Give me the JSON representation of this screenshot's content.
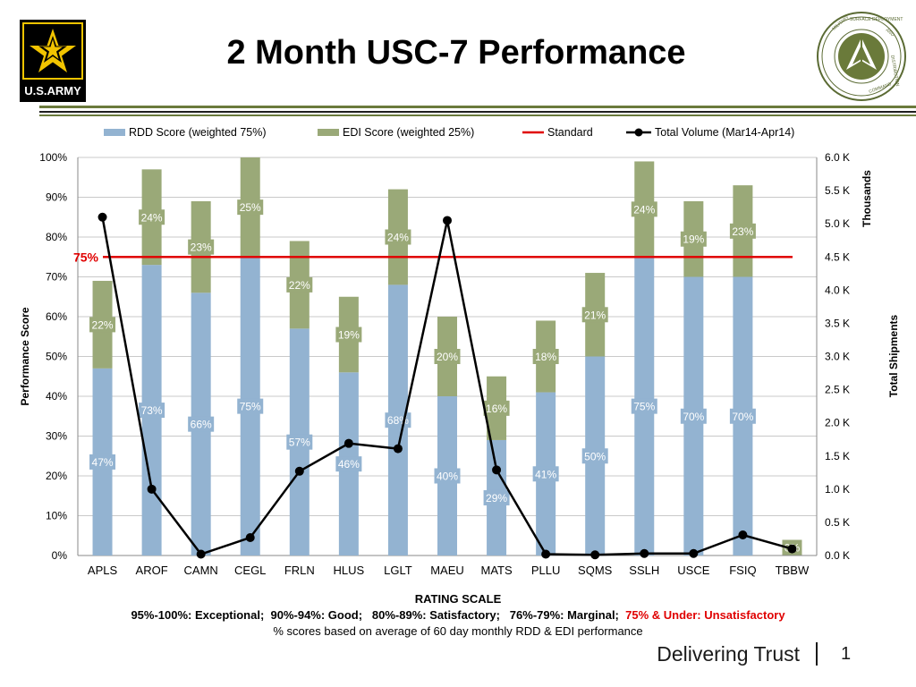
{
  "header": {
    "title": "2 Month USC-7 Performance",
    "logo_left_text": "U.S.ARMY",
    "logo_right_text": "MILITARY SURFACE DEPLOYMENT AND DISTRIBUTION COMMAND"
  },
  "chart_data": {
    "type": "bar",
    "stacked": true,
    "categories": [
      "APLS",
      "AROF",
      "CAMN",
      "CEGL",
      "FRLN",
      "HLUS",
      "LGLT",
      "MAEU",
      "MATS",
      "PLLU",
      "SQMS",
      "SSLH",
      "USCE",
      "FSIQ",
      "TBBW"
    ],
    "series": [
      {
        "name": "RDD Score (weighted 75%)",
        "color": "#93b3d1",
        "axis": "left",
        "values": [
          47,
          73,
          66,
          75,
          57,
          46,
          68,
          40,
          29,
          41,
          50,
          75,
          70,
          70,
          0
        ],
        "labels": [
          "47%",
          "73%",
          "66%",
          "75%",
          "57%",
          "46%",
          "68%",
          "40%",
          "29%",
          "41%",
          "50%",
          "75%",
          "70%",
          "70%",
          ""
        ]
      },
      {
        "name": "EDI Score (weighted 25%)",
        "color": "#9aa978",
        "axis": "left",
        "values": [
          22,
          24,
          23,
          25,
          22,
          19,
          24,
          20,
          16,
          18,
          21,
          24,
          19,
          23,
          0
        ],
        "labels": [
          "22%",
          "24%",
          "23%",
          "25%",
          "22%",
          "19%",
          "24%",
          "20%",
          "16%",
          "18%",
          "21%",
          "24%",
          "19%",
          "23%",
          "0%"
        ]
      },
      {
        "name": "Standard",
        "color": "#e00000",
        "type": "line",
        "axis": "left",
        "value": 75,
        "label": "75%"
      },
      {
        "name": "Total Volume (Mar14-Apr14)",
        "color": "#000000",
        "type": "line",
        "axis": "right",
        "values": [
          5.1,
          1.0,
          0.02,
          0.27,
          1.27,
          1.69,
          1.61,
          5.05,
          1.29,
          0.02,
          0.01,
          0.03,
          0.03,
          0.31,
          0.1
        ]
      }
    ],
    "ylabel": "Performance Score",
    "ylim": [
      0,
      100
    ],
    "yticks": [
      "0%",
      "10%",
      "20%",
      "30%",
      "40%",
      "50%",
      "60%",
      "70%",
      "80%",
      "90%",
      "100%"
    ],
    "y2label": "Total Shipments",
    "y2unit": "Thousands",
    "y2lim": [
      0,
      6
    ],
    "y2ticks": [
      "0.0 K",
      "0.5 K",
      "1.0 K",
      "1.5 K",
      "2.0 K",
      "2.5 K",
      "3.0 K",
      "3.5 K",
      "4.0 K",
      "4.5 K",
      "5.0 K",
      "5.5 K",
      "6.0 K"
    ],
    "xlabel": "",
    "legend_position": "top",
    "grid": true
  },
  "footer": {
    "rating_title": "RATING SCALE",
    "rating_scale": "95%-100%: Exceptional;  90%-94%: Good;   80%-89%: Satisfactory;   76%-79%: Marginal;  ",
    "rating_unsat": "75% & Under: Unsatisfactory",
    "note": "% scores based on average of 60 day monthly RDD & EDI performance",
    "tagline": "Delivering Trust",
    "page": "1"
  }
}
